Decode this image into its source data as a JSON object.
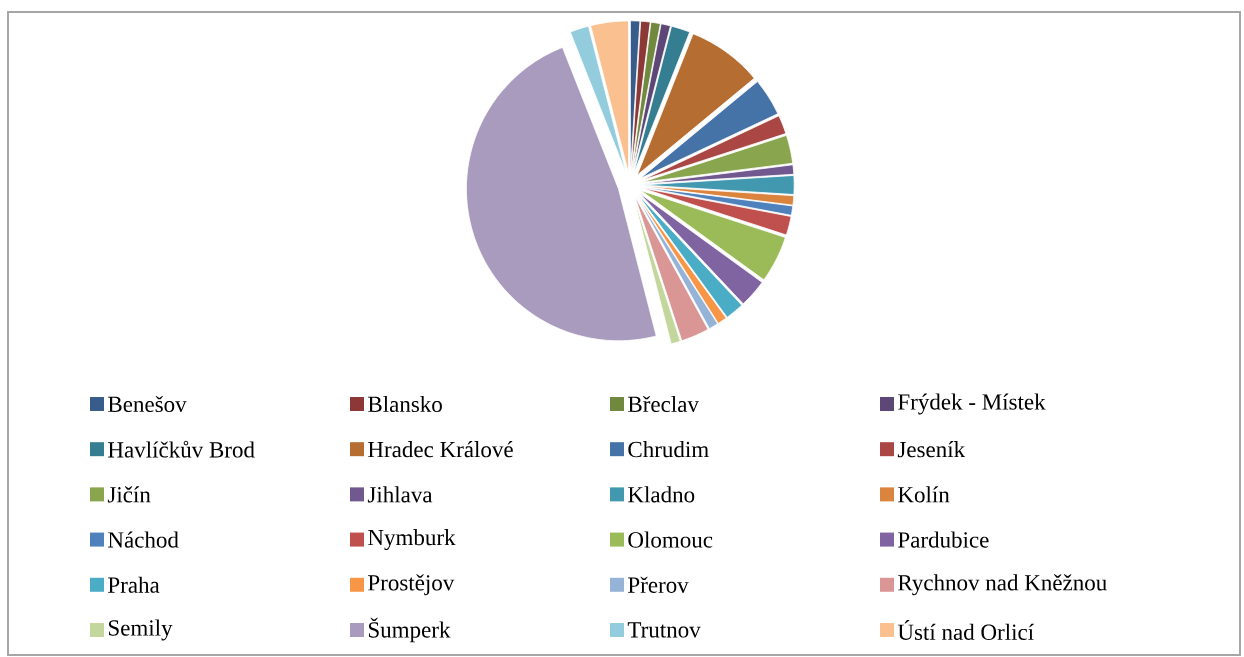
{
  "chart_data": {
    "type": "pie",
    "legend": "bottom",
    "categories": [
      "Benešov",
      "Blansko",
      "Břeclav",
      "Frýdek - Místek",
      "Havlíčkův Brod",
      "Hradec Králové",
      "Chrudim",
      "Jeseník",
      "Jičín",
      "Jihlava",
      "Kladno",
      "Kolín",
      "Náchod",
      "Nymburk",
      "Olomouc",
      "Pardubice",
      "Praha",
      "Prostějov",
      "Přerov",
      "Rychnov nad Kněžnou",
      "Semily",
      "Šumperk",
      "Trutnov",
      "Ústí nad Orlicí"
    ],
    "values": [
      1,
      1,
      1,
      1,
      2,
      8,
      4,
      2,
      3,
      1,
      2,
      1,
      1,
      2,
      5,
      3,
      2,
      1,
      1,
      3,
      1,
      48,
      2,
      4
    ],
    "colors": [
      "#385d8a",
      "#8c3836",
      "#71893f",
      "#5c4776",
      "#357d91",
      "#b66d31",
      "#4572a7",
      "#aa4643",
      "#89a54e",
      "#71588f",
      "#4198af",
      "#db843d",
      "#4f81bd",
      "#c0504d",
      "#9bbb59",
      "#8064a2",
      "#4bacc6",
      "#f79646",
      "#95b3d7",
      "#d99694",
      "#c3d69b",
      "#a99bbd",
      "#93cddd",
      "#fac090"
    ]
  }
}
